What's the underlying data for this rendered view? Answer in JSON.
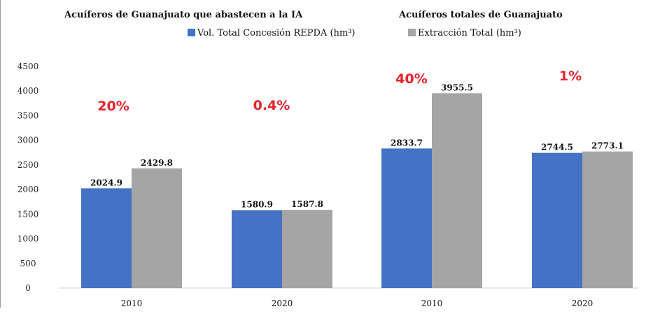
{
  "chart_data": {
    "type": "bar",
    "titles": [
      "Acuíferos de Guanajuato que abastecen a la IA",
      "Acuíferos totales de Guanajuato"
    ],
    "categories": [
      "2010",
      "2020",
      "2010",
      "2020"
    ],
    "series": [
      {
        "name": "Vol. Total Concesión REPDA (hm³)",
        "color": "#4472c4",
        "values": [
          2024.9,
          1580.9,
          2833.7,
          2744.5
        ]
      },
      {
        "name": "Extracción Total (hm³)",
        "color": "#a5a5a5",
        "values": [
          2429.8,
          1587.8,
          3955.5,
          2773.1
        ]
      }
    ],
    "value_labels": [
      [
        "2024.9",
        "1580.9",
        "2833.7",
        "2744.5"
      ],
      [
        "2429.8",
        "1587.8",
        "3955.5",
        "2773.1"
      ]
    ],
    "annotations": [
      "20%",
      "0.4%",
      "40%",
      "1%"
    ],
    "annotation_color": "#e8222a",
    "yticks": [
      "0",
      "500",
      "1000",
      "1500",
      "2000",
      "2500",
      "3000",
      "3500",
      "4000",
      "4500"
    ],
    "ylim": [
      0,
      4500
    ],
    "xlabel": "",
    "ylabel": "",
    "grid": false,
    "legend_position": "top"
  }
}
